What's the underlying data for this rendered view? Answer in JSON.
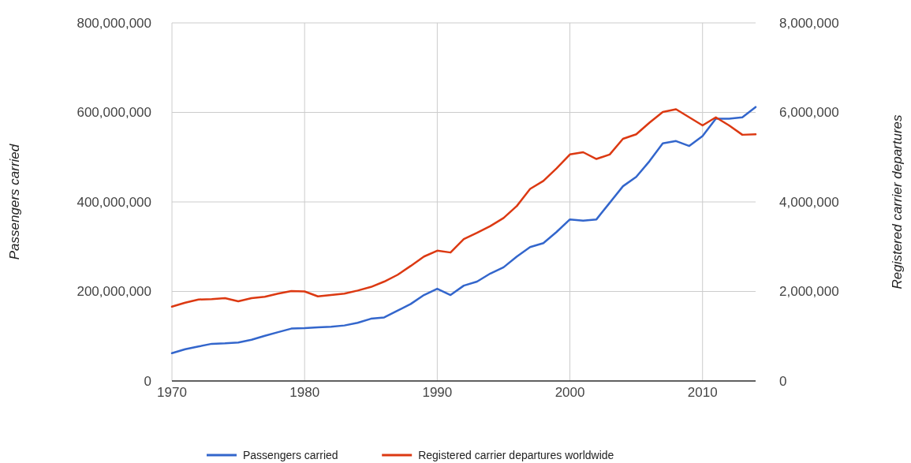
{
  "chart_data": {
    "type": "line",
    "ylabel": "Passengers carried",
    "y2label": "Registered carrier departures",
    "x": [
      1970,
      1971,
      1972,
      1973,
      1974,
      1975,
      1976,
      1977,
      1978,
      1979,
      1980,
      1981,
      1982,
      1983,
      1984,
      1985,
      1986,
      1987,
      1988,
      1989,
      1990,
      1991,
      1992,
      1993,
      1994,
      1995,
      1996,
      1997,
      1998,
      1999,
      2000,
      2001,
      2002,
      2003,
      2004,
      2005,
      2006,
      2007,
      2008,
      2009,
      2010,
      2011,
      2012,
      2013,
      2014
    ],
    "series": [
      {
        "name": "Passengers carried",
        "color": "#3366cc",
        "axis": "y",
        "values": [
          62000000,
          71000000,
          77000000,
          83000000,
          84000000,
          86000000,
          92000000,
          101000000,
          109000000,
          117000000,
          118000000,
          120000000,
          121000000,
          124000000,
          130000000,
          139000000,
          142000000,
          157000000,
          172000000,
          192000000,
          206000000,
          192000000,
          213000000,
          222000000,
          240000000,
          254000000,
          278000000,
          299000000,
          308000000,
          333000000,
          361000000,
          358000000,
          361000000,
          398000000,
          435000000,
          456000000,
          491000000,
          531000000,
          536000000,
          525000000,
          547000000,
          586000000,
          586000000,
          589000000,
          612000000
        ]
      },
      {
        "name": "Registered carrier departures worldwide",
        "color": "#dc3912",
        "axis": "y2",
        "values": [
          1660000,
          1750000,
          1820000,
          1830000,
          1850000,
          1780000,
          1850000,
          1880000,
          1950000,
          2010000,
          2000000,
          1890000,
          1920000,
          1950000,
          2020000,
          2100000,
          2220000,
          2370000,
          2570000,
          2780000,
          2910000,
          2870000,
          3170000,
          3310000,
          3460000,
          3640000,
          3910000,
          4290000,
          4470000,
          4750000,
          5060000,
          5110000,
          4960000,
          5060000,
          5410000,
          5510000,
          5770000,
          6010000,
          6070000,
          5890000,
          5710000,
          5890000,
          5710000,
          5500000,
          5510000
        ]
      }
    ],
    "xlim": [
      1970,
      2014
    ],
    "xticks": [
      1970,
      1980,
      1990,
      2000,
      2010
    ],
    "ylim": [
      0,
      800000000
    ],
    "yticks": [
      0,
      {
        "value": 200000000,
        "label": "200,000,000"
      },
      {
        "value": 400000000,
        "label": "400,000,000"
      },
      {
        "value": 600000000,
        "label": "600,000,000"
      },
      {
        "value": 800000000,
        "label": "800,000,000"
      }
    ],
    "y2lim": [
      0,
      8000000
    ],
    "y2ticks": [
      0,
      {
        "value": 2000000,
        "label": "2,000,000"
      },
      {
        "value": 4000000,
        "label": "4,000,000"
      },
      {
        "value": 6000000,
        "label": "6,000,000"
      },
      {
        "value": 8000000,
        "label": "8,000,000"
      }
    ],
    "grid": true,
    "legend": "bottom"
  }
}
